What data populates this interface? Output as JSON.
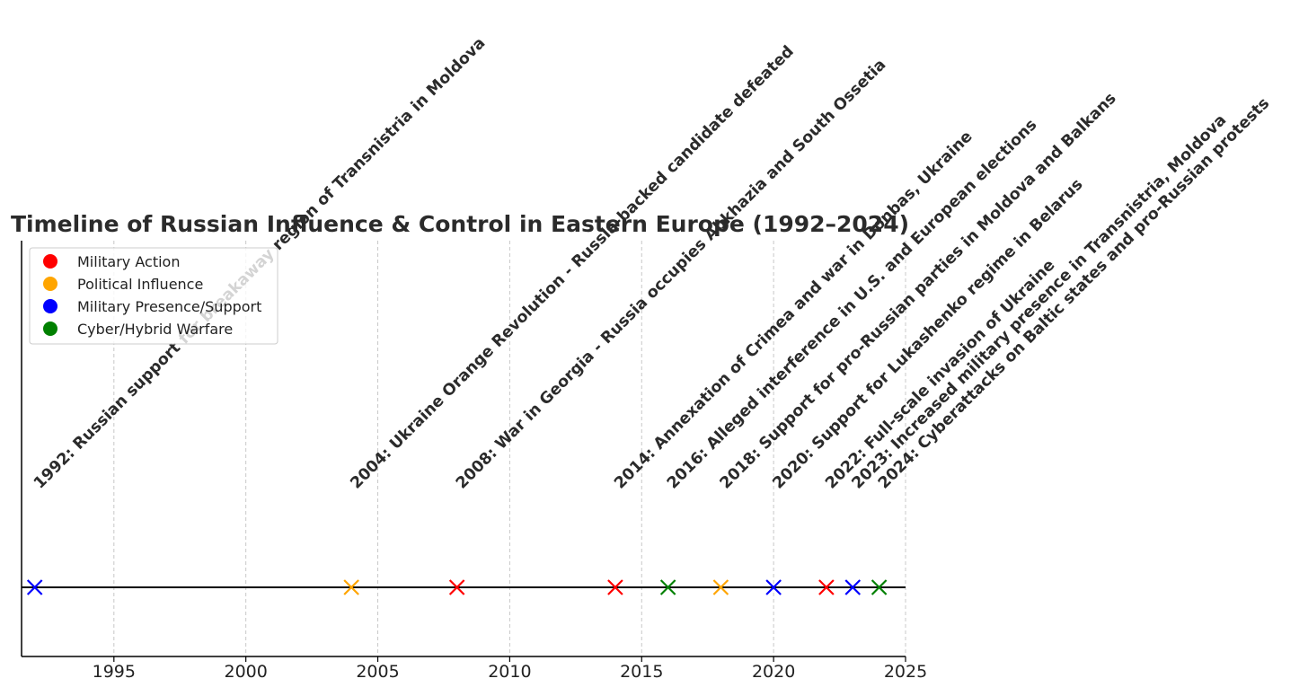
{
  "chart_data": {
    "type": "scatter",
    "title": "Timeline of Russian Influence & Control in Eastern Europe (1992–2024)",
    "xlabel": "",
    "ylabel": "",
    "xlim": [
      1991.5,
      2025
    ],
    "xticks": [
      "1995",
      "2000",
      "2005",
      "2010",
      "2015",
      "2020",
      "2025"
    ],
    "grid": "vertical dashed",
    "legend_position": "top-left",
    "legend": [
      {
        "label": "Military Action",
        "color": "#ff0000"
      },
      {
        "label": "Political Influence",
        "color": "#ffa500"
      },
      {
        "label": "Military Presence/Support",
        "color": "#0000ff"
      },
      {
        "label": "Cyber/Hybrid Warfare",
        "color": "#008000"
      }
    ],
    "events": [
      {
        "year": 1992,
        "category": "Military Presence/Support",
        "color": "#0000ff",
        "label": "1992: Russian support for breakaway region of Transnistria in Moldova"
      },
      {
        "year": 2004,
        "category": "Political Influence",
        "color": "#ffa500",
        "label": "2004: Ukraine Orange Revolution - Russia-backed candidate defeated"
      },
      {
        "year": 2008,
        "category": "Military Action",
        "color": "#ff0000",
        "label": "2008: War in Georgia - Russia occupies Abkhazia and South Ossetia"
      },
      {
        "year": 2014,
        "category": "Military Action",
        "color": "#ff0000",
        "label": "2014: Annexation of Crimea and war in Donbas, Ukraine"
      },
      {
        "year": 2016,
        "category": "Cyber/Hybrid Warfare",
        "color": "#008000",
        "label": "2016: Alleged interference in U.S. and European elections"
      },
      {
        "year": 2018,
        "category": "Political Influence",
        "color": "#ffa500",
        "label": "2018: Support for pro-Russian parties in Moldova and Balkans"
      },
      {
        "year": 2020,
        "category": "Military Presence/Support",
        "color": "#0000ff",
        "label": "2020: Support for Lukashenko regime in Belarus"
      },
      {
        "year": 2022,
        "category": "Military Action",
        "color": "#ff0000",
        "label": "2022: Full-scale invasion of Ukraine"
      },
      {
        "year": 2023,
        "category": "Military Presence/Support",
        "color": "#0000ff",
        "label": "2023: Increased military presence in Transnistria, Moldova"
      },
      {
        "year": 2024,
        "category": "Cyber/Hybrid Warfare",
        "color": "#008000",
        "label": "2024: Cyberattacks on Baltic states and pro-Russian protests"
      }
    ]
  }
}
